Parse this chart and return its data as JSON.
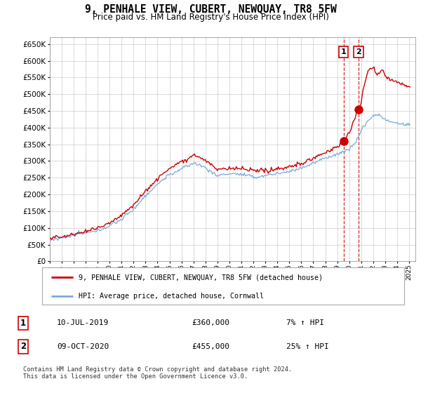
{
  "title": "9, PENHALE VIEW, CUBERT, NEWQUAY, TR8 5FW",
  "subtitle": "Price paid vs. HM Land Registry's House Price Index (HPI)",
  "yticks": [
    0,
    50000,
    100000,
    150000,
    200000,
    250000,
    300000,
    350000,
    400000,
    450000,
    500000,
    550000,
    600000,
    650000
  ],
  "ylim": [
    0,
    670000
  ],
  "xlim_start": 1995.0,
  "xlim_end": 2025.5,
  "sale1_date": 2019.53,
  "sale1_price": 360000,
  "sale2_date": 2020.78,
  "sale2_price": 455000,
  "legend_line1": "9, PENHALE VIEW, CUBERT, NEWQUAY, TR8 5FW (detached house)",
  "legend_line2": "HPI: Average price, detached house, Cornwall",
  "table_row1_num": "1",
  "table_row1_date": "10-JUL-2019",
  "table_row1_price": "£360,000",
  "table_row1_hpi": "7% ↑ HPI",
  "table_row2_num": "2",
  "table_row2_date": "09-OCT-2020",
  "table_row2_price": "£455,000",
  "table_row2_hpi": "25% ↑ HPI",
  "footnote": "Contains HM Land Registry data © Crown copyright and database right 2024.\nThis data is licensed under the Open Government Licence v3.0.",
  "line_color_red": "#cc0000",
  "line_color_blue": "#7aaadd",
  "grid_color": "#cccccc",
  "bg_color": "#ffffff"
}
